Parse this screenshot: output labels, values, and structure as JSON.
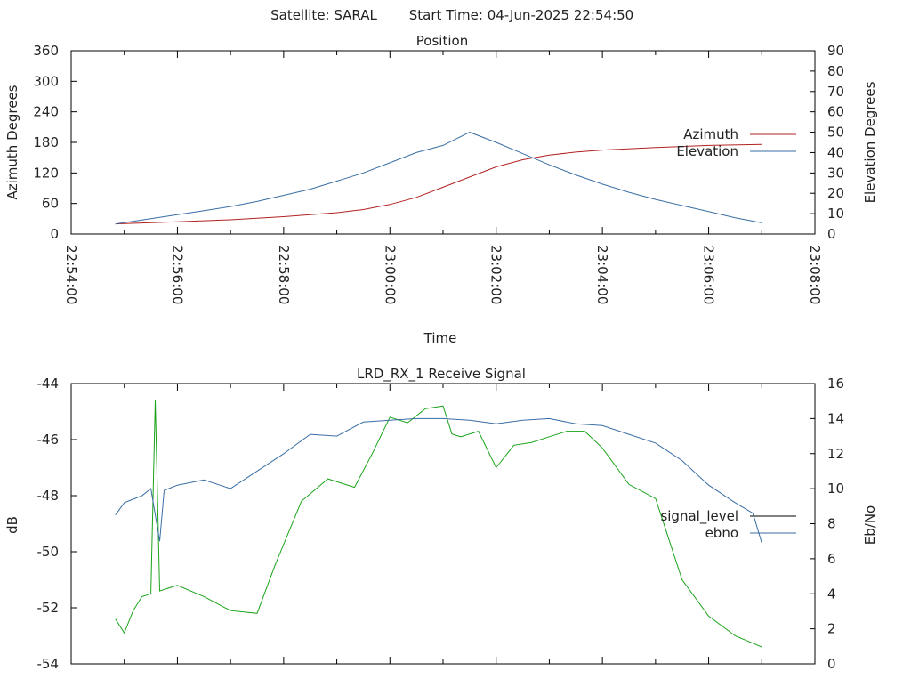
{
  "header": {
    "satellite": "Satellite: SARAL",
    "start_time": "Start Time: 04-Jun-2025 22:54:50"
  },
  "chart_data": [
    {
      "type": "line",
      "title": "Position",
      "xlabel": "Time",
      "ylabel": "Azimuth Degrees",
      "y2label": "Elevation Degrees",
      "xlim": [
        "22:54:00",
        "23:08:00"
      ],
      "ylim": [
        0,
        360
      ],
      "y2lim": [
        0,
        90
      ],
      "xticks": [
        "22:54:00",
        "22:56:00",
        "22:58:00",
        "23:00:00",
        "23:02:00",
        "23:04:00",
        "23:06:00",
        "23:08:00"
      ],
      "yticks": [
        0,
        60,
        120,
        180,
        240,
        300,
        360
      ],
      "y2ticks": [
        0,
        10,
        20,
        30,
        40,
        50,
        60,
        70,
        80,
        90
      ],
      "legend_position": "right",
      "series": [
        {
          "name": "Azimuth",
          "axis": "left",
          "color": "#b22222",
          "x": [
            "22:54:50",
            "22:56:00",
            "22:57:00",
            "22:58:00",
            "22:59:00",
            "22:59:30",
            "23:00:00",
            "23:00:30",
            "23:01:00",
            "23:01:30",
            "23:02:00",
            "23:02:30",
            "23:03:00",
            "23:03:30",
            "23:04:00",
            "23:05:00",
            "23:06:00",
            "23:07:00"
          ],
          "values": [
            20,
            24,
            28,
            34,
            42,
            48,
            58,
            72,
            92,
            112,
            132,
            146,
            155,
            161,
            165,
            170,
            174,
            176
          ]
        },
        {
          "name": "Elevation",
          "axis": "right",
          "color": "#3a6ea5",
          "x": [
            "22:54:50",
            "22:55:30",
            "22:56:00",
            "22:56:30",
            "22:57:00",
            "22:57:30",
            "22:58:00",
            "22:58:30",
            "22:59:00",
            "22:59:30",
            "23:00:00",
            "23:00:30",
            "23:01:00",
            "23:01:30",
            "23:02:00",
            "23:02:30",
            "23:03:00",
            "23:03:30",
            "23:04:00",
            "23:04:30",
            "23:05:00",
            "23:05:30",
            "23:06:00",
            "23:06:30",
            "23:07:00"
          ],
          "values": [
            5,
            7.5,
            9.5,
            11.5,
            13.5,
            16,
            19,
            22,
            26,
            30,
            35,
            40,
            43.5,
            50,
            45,
            39.5,
            34,
            29,
            24.5,
            20.5,
            17,
            14,
            11,
            8,
            5.5
          ]
        }
      ]
    },
    {
      "type": "line",
      "title": "LRD_RX_1 Receive Signal",
      "ylabel": "dB",
      "y2label": "Eb/No",
      "xlim": [
        "22:54:00",
        "23:08:00"
      ],
      "ylim": [
        -54,
        -44
      ],
      "y2lim": [
        0,
        16
      ],
      "yticks": [
        -54,
        -52,
        -50,
        -48,
        -46,
        -44
      ],
      "y2ticks": [
        0,
        2,
        4,
        6,
        8,
        10,
        12,
        14,
        16
      ],
      "legend_position": "right",
      "series": [
        {
          "name": "signal_level",
          "axis": "left",
          "color": "#1aa31a",
          "x": [
            "22:54:50",
            "22:55:00",
            "22:55:10",
            "22:55:20",
            "22:55:30",
            "22:55:35",
            "22:55:40",
            "22:55:50",
            "22:56:00",
            "22:56:30",
            "22:57:00",
            "22:57:30",
            "22:57:50",
            "22:58:20",
            "22:58:50",
            "22:59:20",
            "22:59:40",
            "23:00:00",
            "23:00:20",
            "23:00:40",
            "23:01:00",
            "23:01:10",
            "23:01:20",
            "23:01:40",
            "23:02:00",
            "23:02:20",
            "23:02:40",
            "23:03:00",
            "23:03:20",
            "23:03:40",
            "23:04:00",
            "23:04:30",
            "23:05:00",
            "23:05:30",
            "23:06:00",
            "23:06:30",
            "23:07:00"
          ],
          "values": [
            -52.4,
            -52.9,
            -52.1,
            -51.6,
            -51.5,
            -44.6,
            -51.4,
            -51.3,
            -51.2,
            -51.6,
            -52.1,
            -52.2,
            -50.5,
            -48.2,
            -47.4,
            -47.7,
            -46.5,
            -45.2,
            -45.4,
            -44.9,
            -44.8,
            -45.8,
            -45.9,
            -45.7,
            -47.0,
            -46.2,
            -46.1,
            -45.9,
            -45.7,
            -45.7,
            -46.3,
            -47.6,
            -48.1,
            -51.0,
            -52.3,
            -53.0,
            -53.4
          ]
        },
        {
          "name": "ebno",
          "axis": "right",
          "color": "#3a6ea5",
          "x": [
            "22:54:50",
            "22:55:00",
            "22:55:20",
            "22:55:30",
            "22:55:40",
            "22:55:45",
            "22:55:50",
            "22:56:00",
            "22:56:30",
            "22:57:00",
            "22:57:30",
            "22:58:00",
            "22:58:30",
            "22:59:00",
            "22:59:30",
            "23:00:00",
            "23:00:30",
            "23:01:00",
            "23:01:30",
            "23:02:00",
            "23:02:30",
            "23:03:00",
            "23:03:30",
            "23:04:00",
            "23:04:30",
            "23:05:00",
            "23:05:30",
            "23:06:00",
            "23:06:30",
            "23:06:50",
            "23:07:00"
          ],
          "values": [
            8.5,
            9.2,
            9.6,
            10.0,
            7.0,
            9.9,
            10.0,
            10.2,
            10.5,
            10.0,
            11.0,
            12.0,
            13.1,
            13.0,
            13.8,
            13.9,
            14.0,
            14.0,
            13.9,
            13.7,
            13.9,
            14.0,
            13.7,
            13.6,
            13.1,
            12.6,
            11.6,
            10.2,
            9.2,
            8.6,
            6.9
          ]
        }
      ]
    }
  ]
}
